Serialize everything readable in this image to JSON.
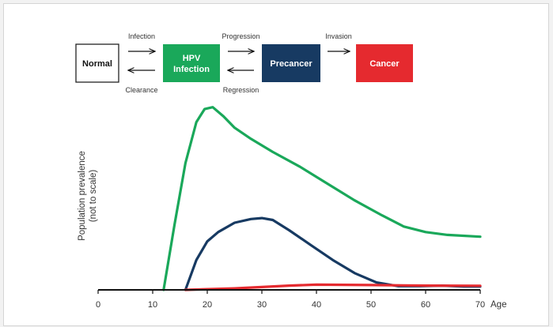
{
  "flow": {
    "states": [
      {
        "label_lines": [
          "Normal"
        ],
        "fill": "#ffffff",
        "text_color": "#111111",
        "border": "#222222"
      },
      {
        "label_lines": [
          "HPV",
          "Infection"
        ],
        "fill": "#1aa85a",
        "text_color": "#ffffff",
        "border": "#1aa85a"
      },
      {
        "label_lines": [
          "Precancer"
        ],
        "fill": "#173a62",
        "text_color": "#ffffff",
        "border": "#173a62"
      },
      {
        "label_lines": [
          "Cancer"
        ],
        "fill": "#e52a2f",
        "text_color": "#ffffff",
        "border": "#e52a2f"
      }
    ],
    "transitions": [
      {
        "forward": "Infection",
        "backward": "Clearance"
      },
      {
        "forward": "Progression",
        "backward": "Regression"
      },
      {
        "forward": "Invasion",
        "backward": ""
      }
    ]
  },
  "chart_data": {
    "type": "line",
    "xlabel": "Age",
    "ylabel_lines": [
      "Population prevalence",
      "(not to scale)"
    ],
    "x_ticks": [
      0,
      10,
      20,
      30,
      40,
      50,
      60,
      70
    ],
    "xlim": [
      0,
      70
    ],
    "ylim": [
      0,
      100
    ],
    "grid": false,
    "series": [
      {
        "color": "#1aa85a",
        "points": [
          [
            12,
            0
          ],
          [
            14,
            35
          ],
          [
            16,
            68
          ],
          [
            18,
            90
          ],
          [
            19.5,
            97
          ],
          [
            21,
            98
          ],
          [
            23,
            93
          ],
          [
            25,
            87
          ],
          [
            28,
            81
          ],
          [
            32,
            74
          ],
          [
            37,
            66
          ],
          [
            42,
            57
          ],
          [
            47,
            48
          ],
          [
            52,
            40
          ],
          [
            56,
            34
          ],
          [
            60,
            31
          ],
          [
            64,
            29.5
          ],
          [
            70,
            28.5
          ]
        ]
      },
      {
        "color": "#173a62",
        "points": [
          [
            16,
            0
          ],
          [
            18,
            16
          ],
          [
            20,
            26
          ],
          [
            22,
            31
          ],
          [
            25,
            36
          ],
          [
            28,
            38
          ],
          [
            30,
            38.5
          ],
          [
            32,
            37.5
          ],
          [
            35,
            32
          ],
          [
            39,
            24
          ],
          [
            43,
            16
          ],
          [
            47,
            9
          ],
          [
            51,
            4
          ],
          [
            55,
            2
          ],
          [
            59,
            2
          ],
          [
            63,
            2.3
          ],
          [
            67,
            1.8
          ],
          [
            70,
            1.8
          ]
        ]
      },
      {
        "color": "#e52a2f",
        "points": [
          [
            16,
            0
          ],
          [
            25,
            0.8
          ],
          [
            35,
            2.3
          ],
          [
            40,
            2.8
          ],
          [
            50,
            2.6
          ],
          [
            60,
            2.3
          ],
          [
            70,
            2.2
          ]
        ]
      }
    ]
  }
}
